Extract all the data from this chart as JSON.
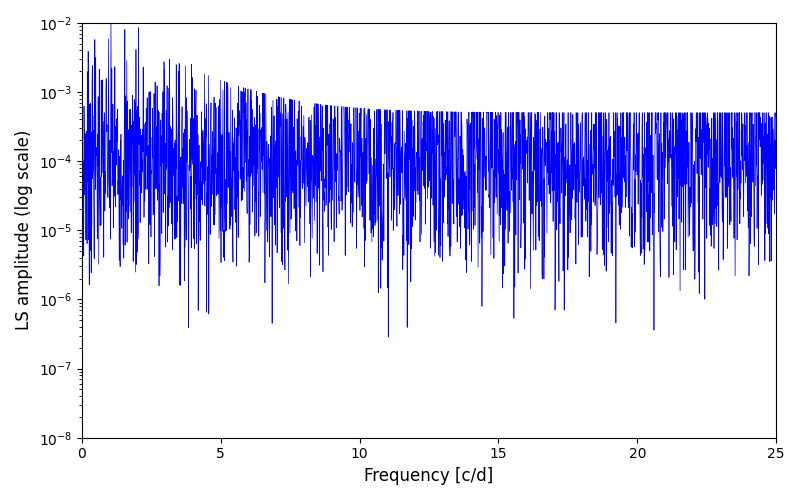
{
  "xlabel": "Frequency [c/d]",
  "ylabel": "LS amplitude (log scale)",
  "xlim": [
    0,
    25
  ],
  "ylim": [
    1e-08,
    0.01
  ],
  "line_color": "#0000ff",
  "line_width": 0.5,
  "figsize": [
    8.0,
    5.0
  ],
  "dpi": 100,
  "freq_max": 25.0,
  "n_points": 2500,
  "seed": 7
}
